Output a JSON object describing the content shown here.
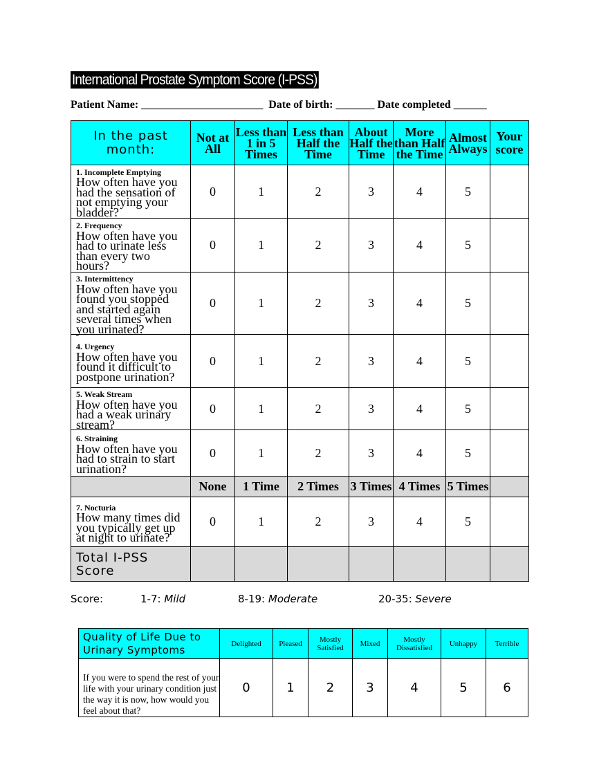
{
  "title": "International Prostate Symptom Score (I-PSS)",
  "patient_line": {
    "name_label": "Patient Name:",
    "name_blank": "______________________",
    "dob_label": "Date of birth:",
    "dob_blank": "_______",
    "completed_label": "Date completed",
    "completed_blank": "______"
  },
  "main": {
    "header": [
      "In the past month:",
      "Not at All",
      "Less than 1 in 5 Times",
      "Less than Half the Time",
      "About Half the Time",
      "More than Half the Time",
      "Almost Always",
      "Your score"
    ],
    "questions": [
      {
        "title": "1. Incomplete Emptying",
        "text": "How often have you had the sensation of not emptying your bladder?"
      },
      {
        "title": "2. Frequency",
        "text": "How often have you had to urinate less than every two hours?"
      },
      {
        "title": "3. Intermittency",
        "text": "How often have you found you stopped and started again several times when you urinated?"
      },
      {
        "title": "4. Urgency",
        "text": "How often have you found it difficult to postpone urination?"
      },
      {
        "title": "5. Weak Stream",
        "text": "How often have you had a weak urinary  stream?"
      },
      {
        "title": "6. Straining",
        "text": "How often have you had to strain to start urination?"
      }
    ],
    "scores": [
      "0",
      "1",
      "2",
      "3",
      "4",
      "5"
    ],
    "nocturia_header": [
      "None",
      "1 Time",
      "2 Times",
      "3 Times",
      "4 Times",
      "5 Times"
    ],
    "nocturia": {
      "title": "7. Nocturia",
      "text": "How many times did you typically get up at night to urinate?"
    },
    "total_label": "Total I-PSS Score"
  },
  "score_legend": {
    "label": "Score:",
    "mild_range": "1-7:",
    "mild": "Mild",
    "moderate_range": "8-19:",
    "moderate": "Moderate",
    "severe_range": "20-35:",
    "severe": "Severe"
  },
  "qol": {
    "title": "Quality of Life Due to Urinary Symptoms",
    "options": [
      "Delighted",
      "Pleased",
      "Mostly Satisfied",
      "Mixed",
      "Mostly Dissatisfied",
      "Unhappy",
      "Terrible"
    ],
    "question": "If you were to spend the rest of your life with your urinary condition just the way it is now, how would you feel about that?",
    "scores": [
      "0",
      "1",
      "2",
      "3",
      "4",
      "5",
      "6"
    ]
  },
  "colors": {
    "header_bg": "#00ffff",
    "gray_row": "#d9d9d9"
  }
}
